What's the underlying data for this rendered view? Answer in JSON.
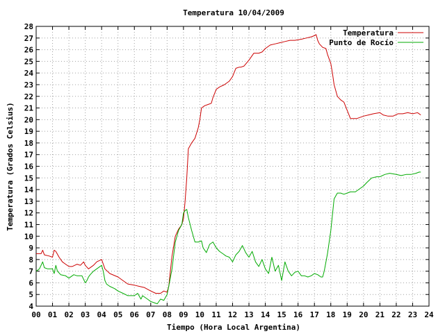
{
  "chart_data": {
    "type": "line",
    "title": "Temperatura 10/04/2009",
    "xlabel": "Tiempo (Hora Local Argentina)",
    "ylabel": "Temperatura (Grados Celsius)",
    "xlim": [
      0,
      24
    ],
    "ylim": [
      4,
      28
    ],
    "x_tick_labels": [
      "00",
      "01",
      "02",
      "03",
      "04",
      "05",
      "06",
      "07",
      "08",
      "09",
      "10",
      "11",
      "12",
      "13",
      "14",
      "15",
      "16",
      "17",
      "18",
      "19",
      "20",
      "21",
      "22",
      "23",
      "24"
    ],
    "y_tick_labels": [
      "4",
      "5",
      "6",
      "7",
      "8",
      "9",
      "10",
      "11",
      "12",
      "13",
      "14",
      "15",
      "16",
      "17",
      "18",
      "19",
      "20",
      "21",
      "22",
      "23",
      "24",
      "25",
      "26",
      "27",
      "28"
    ],
    "grid": true,
    "legend_position": "top-right",
    "series": [
      {
        "name": "Temperatura",
        "color": "#cc0000",
        "x": [
          0,
          0.3,
          0.4,
          0.5,
          0.8,
          1.0,
          1.1,
          1.2,
          1.4,
          1.6,
          1.8,
          2.0,
          2.2,
          2.5,
          2.7,
          2.9,
          3.0,
          3.2,
          3.5,
          3.7,
          4.0,
          4.2,
          4.5,
          5.0,
          5.3,
          5.6,
          6.0,
          6.3,
          6.6,
          7.0,
          7.3,
          7.6,
          7.8,
          8.0,
          8.1,
          8.2,
          8.3,
          8.5,
          8.7,
          8.9,
          9.0,
          9.1,
          9.2,
          9.3,
          9.5,
          9.7,
          9.9,
          10.0,
          10.1,
          10.3,
          10.5,
          10.7,
          10.8,
          11.0,
          11.2,
          11.5,
          11.8,
          12.0,
          12.2,
          12.4,
          12.5,
          12.7,
          13.0,
          13.3,
          13.6,
          13.8,
          14.0,
          14.3,
          14.6,
          14.9,
          15.2,
          15.5,
          15.8,
          16.2,
          16.5,
          16.8,
          17.0,
          17.1,
          17.2,
          17.3,
          17.5,
          17.7,
          17.8,
          18.0,
          18.1,
          18.2,
          18.4,
          18.6,
          18.8,
          19.0,
          19.2,
          19.4,
          19.6,
          20.0,
          20.3,
          20.6,
          21.0,
          21.2,
          21.5,
          21.8,
          22.1,
          22.4,
          22.7,
          23.0,
          23.3,
          23.5
        ],
        "values": [
          8.5,
          8.5,
          8.8,
          8.4,
          8.3,
          8.2,
          8.8,
          8.7,
          8.2,
          7.8,
          7.6,
          7.4,
          7.4,
          7.6,
          7.5,
          7.8,
          7.5,
          7.2,
          7.5,
          7.8,
          8.0,
          7.2,
          6.8,
          6.5,
          6.2,
          5.9,
          5.8,
          5.7,
          5.6,
          5.3,
          5.1,
          5.1,
          5.3,
          5.2,
          5.7,
          7.0,
          8.3,
          10.0,
          10.6,
          11.0,
          11.5,
          13.0,
          15.0,
          17.5,
          18.0,
          18.4,
          19.3,
          20.0,
          21.0,
          21.2,
          21.3,
          21.4,
          21.9,
          22.6,
          22.8,
          23.0,
          23.3,
          23.7,
          24.4,
          24.5,
          24.5,
          24.6,
          25.1,
          25.7,
          25.7,
          25.8,
          26.1,
          26.4,
          26.5,
          26.6,
          26.7,
          26.8,
          26.8,
          26.9,
          27.0,
          27.1,
          27.2,
          27.3,
          26.8,
          26.5,
          26.2,
          26.1,
          25.6,
          24.8,
          24.0,
          23.0,
          22.0,
          21.7,
          21.5,
          20.8,
          20.1,
          20.1,
          20.1,
          20.3,
          20.4,
          20.5,
          20.6,
          20.4,
          20.3,
          20.3,
          20.5,
          20.5,
          20.6,
          20.5,
          20.6,
          20.4
        ]
      },
      {
        "name": "Punto de Rocío",
        "color": "#00aa00",
        "x": [
          0,
          0.2,
          0.3,
          0.4,
          0.5,
          0.7,
          1.0,
          1.1,
          1.2,
          1.3,
          1.5,
          1.8,
          2.0,
          2.3,
          2.5,
          2.8,
          3.0,
          3.1,
          3.2,
          3.3,
          3.5,
          3.7,
          4.0,
          4.1,
          4.2,
          4.3,
          4.5,
          4.8,
          5.0,
          5.3,
          5.6,
          6.0,
          6.2,
          6.4,
          6.5,
          6.8,
          7.0,
          7.2,
          7.4,
          7.6,
          7.8,
          8.0,
          8.1,
          8.3,
          8.5,
          8.7,
          8.9,
          9.0,
          9.1,
          9.2,
          9.3,
          9.5,
          9.7,
          9.9,
          10.1,
          10.2,
          10.4,
          10.6,
          10.8,
          11.0,
          11.2,
          11.4,
          11.6,
          11.8,
          12.0,
          12.2,
          12.4,
          12.6,
          12.8,
          13.0,
          13.2,
          13.4,
          13.6,
          13.8,
          14.0,
          14.2,
          14.4,
          14.6,
          14.8,
          15.0,
          15.2,
          15.4,
          15.6,
          15.8,
          16.0,
          16.2,
          16.4,
          16.6,
          16.8,
          17.0,
          17.2,
          17.4,
          17.5,
          17.6,
          17.8,
          18.0,
          18.2,
          18.4,
          18.6,
          18.8,
          19.0,
          19.2,
          19.5,
          19.8,
          20.0,
          20.2,
          20.5,
          20.8,
          21.0,
          21.3,
          21.6,
          22.0,
          22.3,
          22.6,
          22.9,
          23.2,
          23.4,
          23.5
        ],
        "values": [
          7.0,
          7.2,
          7.5,
          7.8,
          7.3,
          7.2,
          7.2,
          6.8,
          7.5,
          7.0,
          6.7,
          6.6,
          6.4,
          6.7,
          6.6,
          6.6,
          6.0,
          6.2,
          6.5,
          6.7,
          7.0,
          7.2,
          7.5,
          7.0,
          6.2,
          5.9,
          5.7,
          5.5,
          5.3,
          5.1,
          4.9,
          4.9,
          5.1,
          4.6,
          4.9,
          4.6,
          4.4,
          4.3,
          4.2,
          4.6,
          4.5,
          5.0,
          5.7,
          7.2,
          9.5,
          10.5,
          11.0,
          12.0,
          12.2,
          12.3,
          11.6,
          10.5,
          9.5,
          9.5,
          9.6,
          9.0,
          8.6,
          9.3,
          9.5,
          9.0,
          8.7,
          8.5,
          8.3,
          8.2,
          7.8,
          8.4,
          8.7,
          9.2,
          8.6,
          8.2,
          8.7,
          7.8,
          7.4,
          8.0,
          7.2,
          6.8,
          8.2,
          7.0,
          7.5,
          6.2,
          7.8,
          7.0,
          6.6,
          6.9,
          7.0,
          6.6,
          6.6,
          6.5,
          6.6,
          6.8,
          6.7,
          6.5,
          6.5,
          7.0,
          8.5,
          10.5,
          13.2,
          13.7,
          13.7,
          13.6,
          13.7,
          13.8,
          13.8,
          14.1,
          14.3,
          14.6,
          15.0,
          15.1,
          15.1,
          15.3,
          15.4,
          15.3,
          15.2,
          15.3,
          15.3,
          15.4,
          15.5,
          15.5
        ]
      }
    ]
  }
}
